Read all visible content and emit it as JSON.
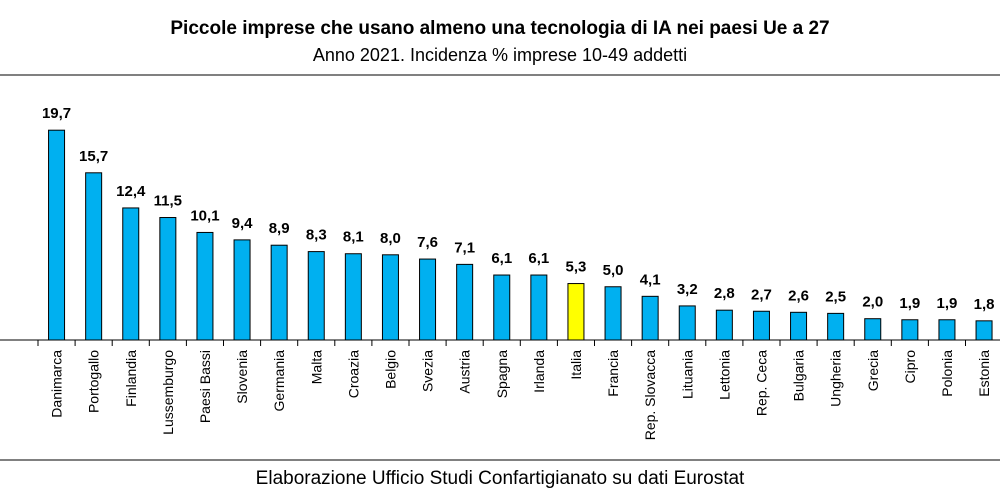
{
  "chart_data": {
    "type": "bar",
    "title": "Piccole imprese che usano almeno una tecnologia di IA nei paesi Ue a 27",
    "subtitle": "Anno 2021. Incidenza % imprese 10-49 addetti",
    "source": "Elaborazione Ufficio Studi Confartigianato su dati Eurostat",
    "categories": [
      "Danimarca",
      "Portogallo",
      "Finlandia",
      "Lussemburgo",
      "Paesi Bassi",
      "Slovenia",
      "Germania",
      "Malta",
      "Croazia",
      "Belgio",
      "Svezia",
      "Austria",
      "Spagna",
      "Irlanda",
      "Italia",
      "Francia",
      "Rep. Slovacca",
      "Lituania",
      "Lettonia",
      "Rep. Ceca",
      "Bulgaria",
      "Ungheria",
      "Grecia",
      "Cipro",
      "Polonia",
      "Estonia"
    ],
    "values": [
      19.7,
      15.7,
      12.4,
      11.5,
      10.1,
      9.4,
      8.9,
      8.3,
      8.1,
      8.0,
      7.6,
      7.1,
      6.1,
      6.1,
      5.3,
      5.0,
      4.1,
      3.2,
      2.8,
      2.7,
      2.6,
      2.5,
      2.0,
      1.9,
      1.9,
      1.8
    ],
    "value_labels": [
      "19,7",
      "15,7",
      "12,4",
      "11,5",
      "10,1",
      "9,4",
      "8,9",
      "8,3",
      "8,1",
      "8,0",
      "7,6",
      "7,1",
      "6,1",
      "6,1",
      "5,3",
      "5,0",
      "4,1",
      "3,2",
      "2,8",
      "2,7",
      "2,6",
      "2,5",
      "2,0",
      "1,9",
      "1,9",
      "1,8"
    ],
    "highlight_category": "Italia",
    "bar_color": "#00B0F0",
    "highlight_color": "#FFFF00",
    "ylim": [
      0,
      20
    ],
    "grid": false,
    "legend": "none",
    "xlabel": "",
    "ylabel": ""
  }
}
